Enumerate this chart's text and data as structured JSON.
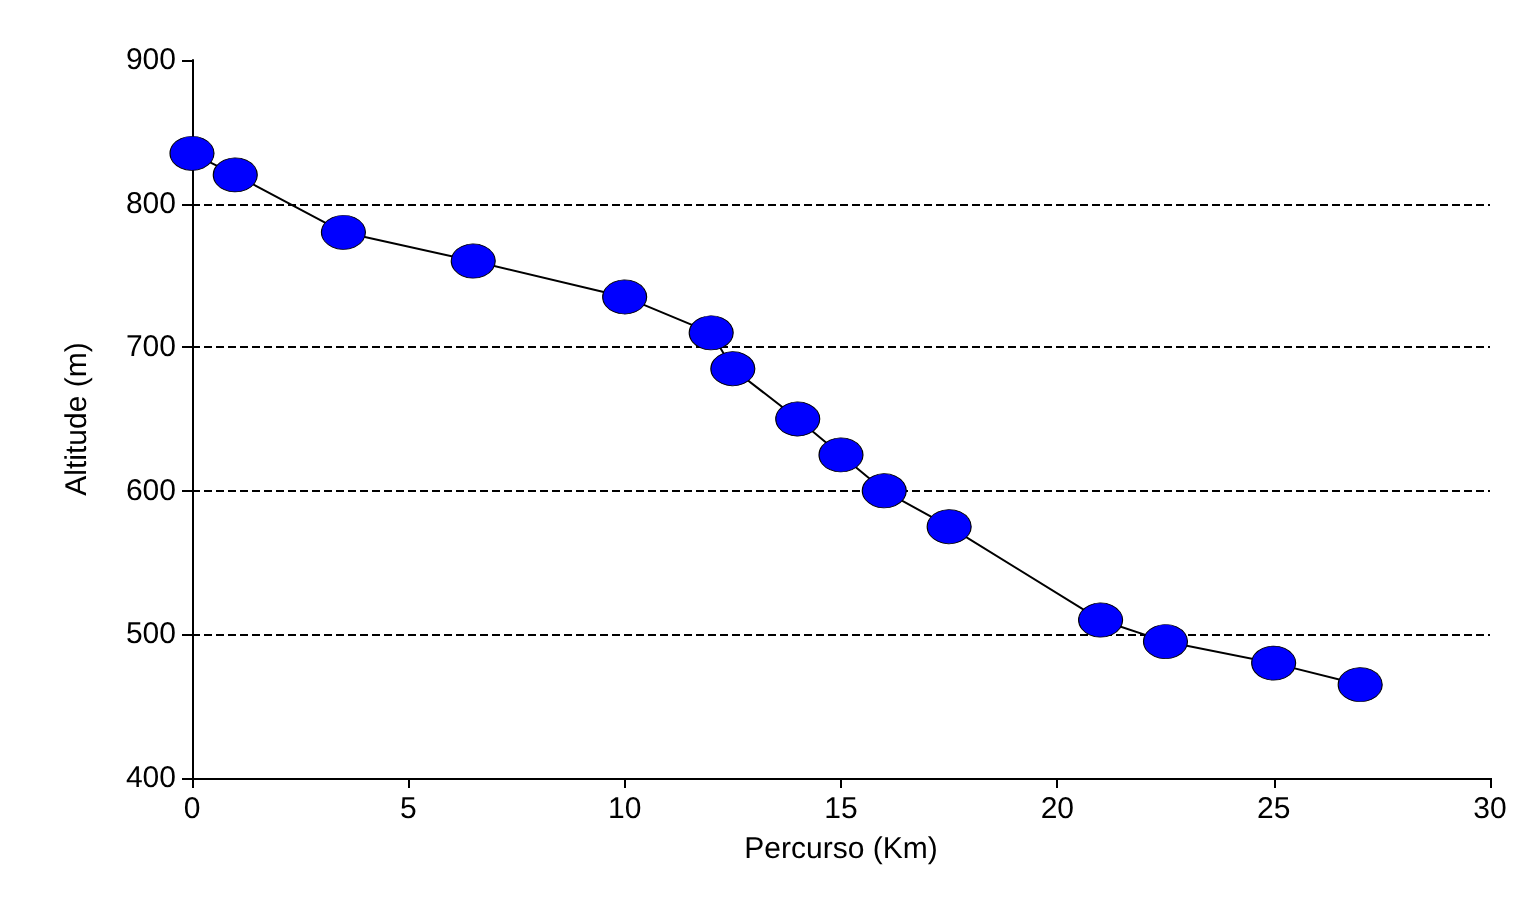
{
  "chart_data": {
    "type": "line",
    "xlabel": "Percurso (Km)",
    "ylabel": "Altitude (m)",
    "x": [
      0,
      1,
      3.5,
      6.5,
      10,
      12,
      12.5,
      14,
      15,
      16,
      17.5,
      21,
      22.5,
      25,
      27
    ],
    "series": [
      {
        "color": "#0000ff",
        "values": [
          835,
          820,
          780,
          760,
          735,
          710,
          685,
          650,
          625,
          600,
          575,
          510,
          495,
          480,
          465
        ]
      }
    ],
    "xlim": [
      0,
      30
    ],
    "xticks": [
      0,
      5,
      10,
      15,
      20,
      25,
      30
    ],
    "ylim": [
      400,
      900
    ],
    "yticks": [
      400,
      500,
      600,
      700,
      800,
      900
    ],
    "grid": "y",
    "marker": "circle",
    "line_style": "solid"
  }
}
